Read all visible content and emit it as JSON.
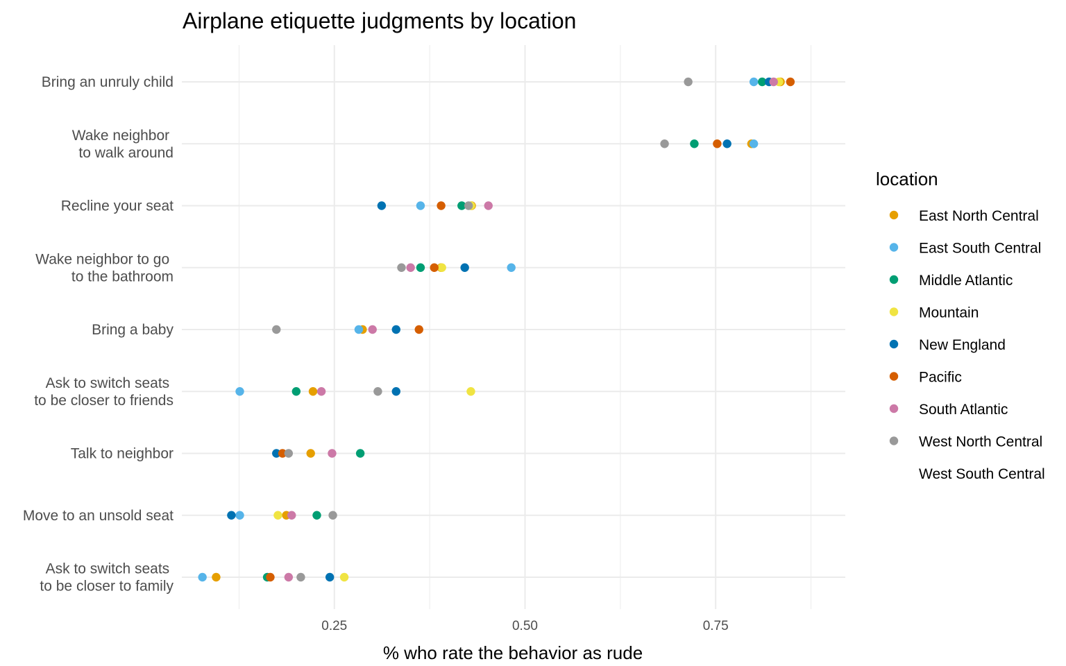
{
  "chart_data": {
    "type": "scatter",
    "title": "Airplane etiquette judgments by location",
    "xlabel": "% who rate the behavior as rude",
    "ylabel": "",
    "xlim": [
      0.05,
      0.92
    ],
    "x_ticks": [
      0.25,
      0.5,
      0.75
    ],
    "x_tick_labels": [
      "0.25",
      "0.50",
      "0.75"
    ],
    "grid": true,
    "legend_title": "location",
    "legend_position": "right",
    "categories": [
      "Bring an unruly child",
      "Wake neighbor \nto walk around",
      "Recline your seat",
      "Wake neighbor to go \nto the bathroom",
      "Bring a baby",
      "Ask to switch seats \nto be closer to friends",
      "Talk to neighbor",
      "Move to an unsold seat",
      "Ask to switch seats \nto be closer to family"
    ],
    "series": [
      {
        "name": "East North Central",
        "color": "#E69F00",
        "values": [
          0.835,
          0.797,
          0.43,
          0.39,
          0.287,
          0.222,
          0.219,
          0.187,
          0.095
        ]
      },
      {
        "name": "East South Central",
        "color": "#56B4E9",
        "values": [
          0.8,
          0.8,
          0.363,
          0.482,
          0.282,
          0.126,
          null,
          0.126,
          0.077
        ]
      },
      {
        "name": "Middle Atlantic",
        "color": "#009E73",
        "values": [
          0.811,
          0.722,
          0.417,
          0.363,
          null,
          0.2,
          0.284,
          0.227,
          0.162
        ]
      },
      {
        "name": "Mountain",
        "color": "#F0E442",
        "values": [
          0.833,
          null,
          0.429,
          0.391,
          null,
          0.429,
          null,
          0.176,
          0.263
        ]
      },
      {
        "name": "New England",
        "color": "#0072B2",
        "values": [
          0.82,
          0.765,
          0.312,
          0.421,
          0.331,
          0.331,
          0.174,
          0.115,
          0.244
        ]
      },
      {
        "name": "Pacific",
        "color": "#D55E00",
        "values": [
          0.848,
          0.752,
          0.39,
          0.381,
          0.361,
          null,
          0.182,
          null,
          0.166
        ]
      },
      {
        "name": "South Atlantic",
        "color": "#CC79A7",
        "values": [
          0.826,
          null,
          0.452,
          0.35,
          0.3,
          0.233,
          0.247,
          0.194,
          0.19
        ]
      },
      {
        "name": "West North Central",
        "color": "#999999",
        "values": [
          0.714,
          0.683,
          0.426,
          0.338,
          0.174,
          0.307,
          0.19,
          0.248,
          0.206
        ]
      },
      {
        "name": "West South Central",
        "color": "#FFFFFF",
        "values": []
      }
    ]
  }
}
